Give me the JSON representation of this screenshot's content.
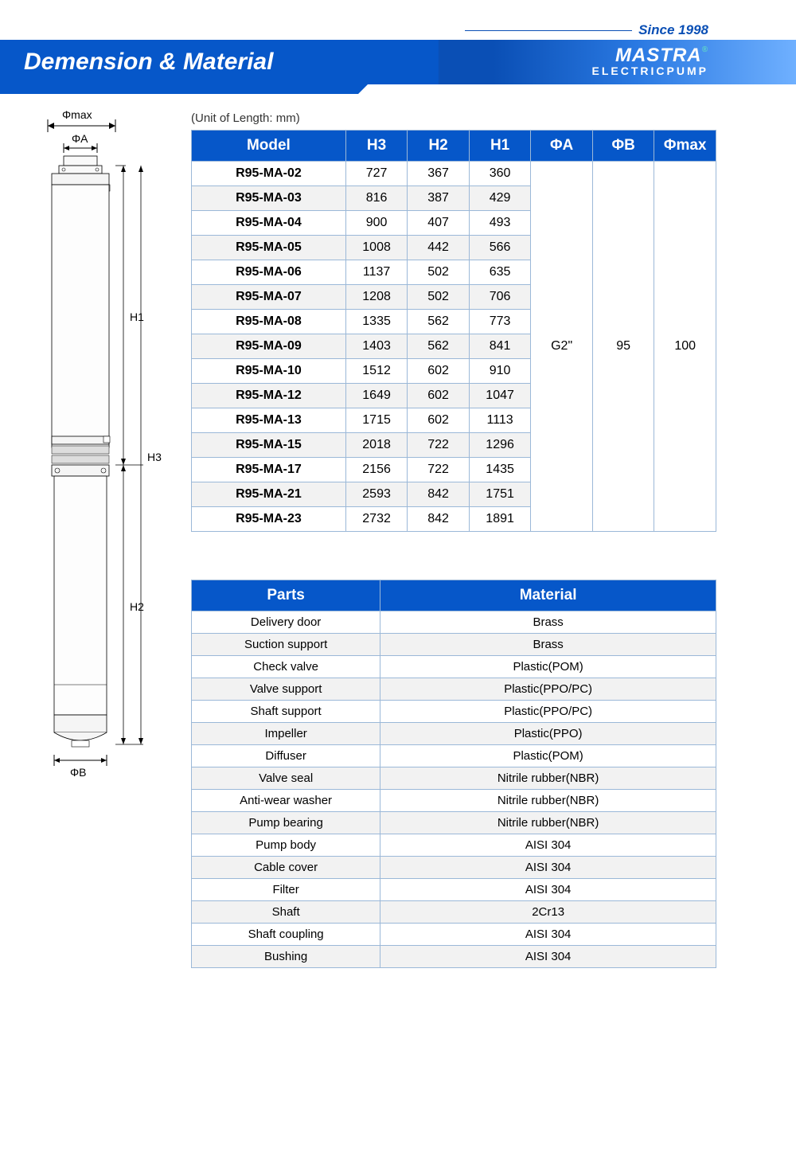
{
  "header": {
    "since": "Since 1998",
    "brand": "MASTRA",
    "sub": "ELECTRICPUMP",
    "title": "Demension & Material"
  },
  "diagram_labels": {
    "phimax": "Φmax",
    "phiA": "ΦA",
    "phiB": "ΦB",
    "H1": "H1",
    "H2": "H2",
    "H3": "H3"
  },
  "unit_note": "(Unit of Length: mm)",
  "dim_table": {
    "columns": [
      "Model",
      "H3",
      "H2",
      "H1",
      "ΦA",
      "ΦB",
      "Φmax"
    ],
    "rows": [
      [
        "R95-MA-02",
        "727",
        "367",
        "360"
      ],
      [
        "R95-MA-03",
        "816",
        "387",
        "429"
      ],
      [
        "R95-MA-04",
        "900",
        "407",
        "493"
      ],
      [
        "R95-MA-05",
        "1008",
        "442",
        "566"
      ],
      [
        "R95-MA-06",
        "1137",
        "502",
        "635"
      ],
      [
        "R95-MA-07",
        "1208",
        "502",
        "706"
      ],
      [
        "R95-MA-08",
        "1335",
        "562",
        "773"
      ],
      [
        "R95-MA-09",
        "1403",
        "562",
        "841"
      ],
      [
        "R95-MA-10",
        "1512",
        "602",
        "910"
      ],
      [
        "R95-MA-12",
        "1649",
        "602",
        "1047"
      ],
      [
        "R95-MA-13",
        "1715",
        "602",
        "1113"
      ],
      [
        "R95-MA-15",
        "2018",
        "722",
        "1296"
      ],
      [
        "R95-MA-17",
        "2156",
        "722",
        "1435"
      ],
      [
        "R95-MA-21",
        "2593",
        "842",
        "1751"
      ],
      [
        "R95-MA-23",
        "2732",
        "842",
        "1891"
      ]
    ],
    "merged": {
      "phiA": "G2\"",
      "phiB": "95",
      "phimax": "100"
    }
  },
  "mat_table": {
    "columns": [
      "Parts",
      "Material"
    ],
    "rows": [
      [
        "Delivery door",
        "Brass"
      ],
      [
        "Suction support",
        "Brass"
      ],
      [
        "Check valve",
        "Plastic(POM)"
      ],
      [
        "Valve support",
        "Plastic(PPO/PC)"
      ],
      [
        "Shaft support",
        "Plastic(PPO/PC)"
      ],
      [
        "Impeller",
        "Plastic(PPO)"
      ],
      [
        "Diffuser",
        "Plastic(POM)"
      ],
      [
        "Valve seal",
        "Nitrile rubber(NBR)"
      ],
      [
        "Anti-wear washer",
        "Nitrile rubber(NBR)"
      ],
      [
        "Pump bearing",
        "Nitrile rubber(NBR)"
      ],
      [
        "Pump body",
        "AISI 304"
      ],
      [
        "Cable cover",
        "AISI 304"
      ],
      [
        "Filter",
        "AISI 304"
      ],
      [
        "Shaft",
        "2Cr13"
      ],
      [
        "Shaft coupling",
        "AISI 304"
      ],
      [
        "Bushing",
        "AISI 304"
      ]
    ]
  }
}
